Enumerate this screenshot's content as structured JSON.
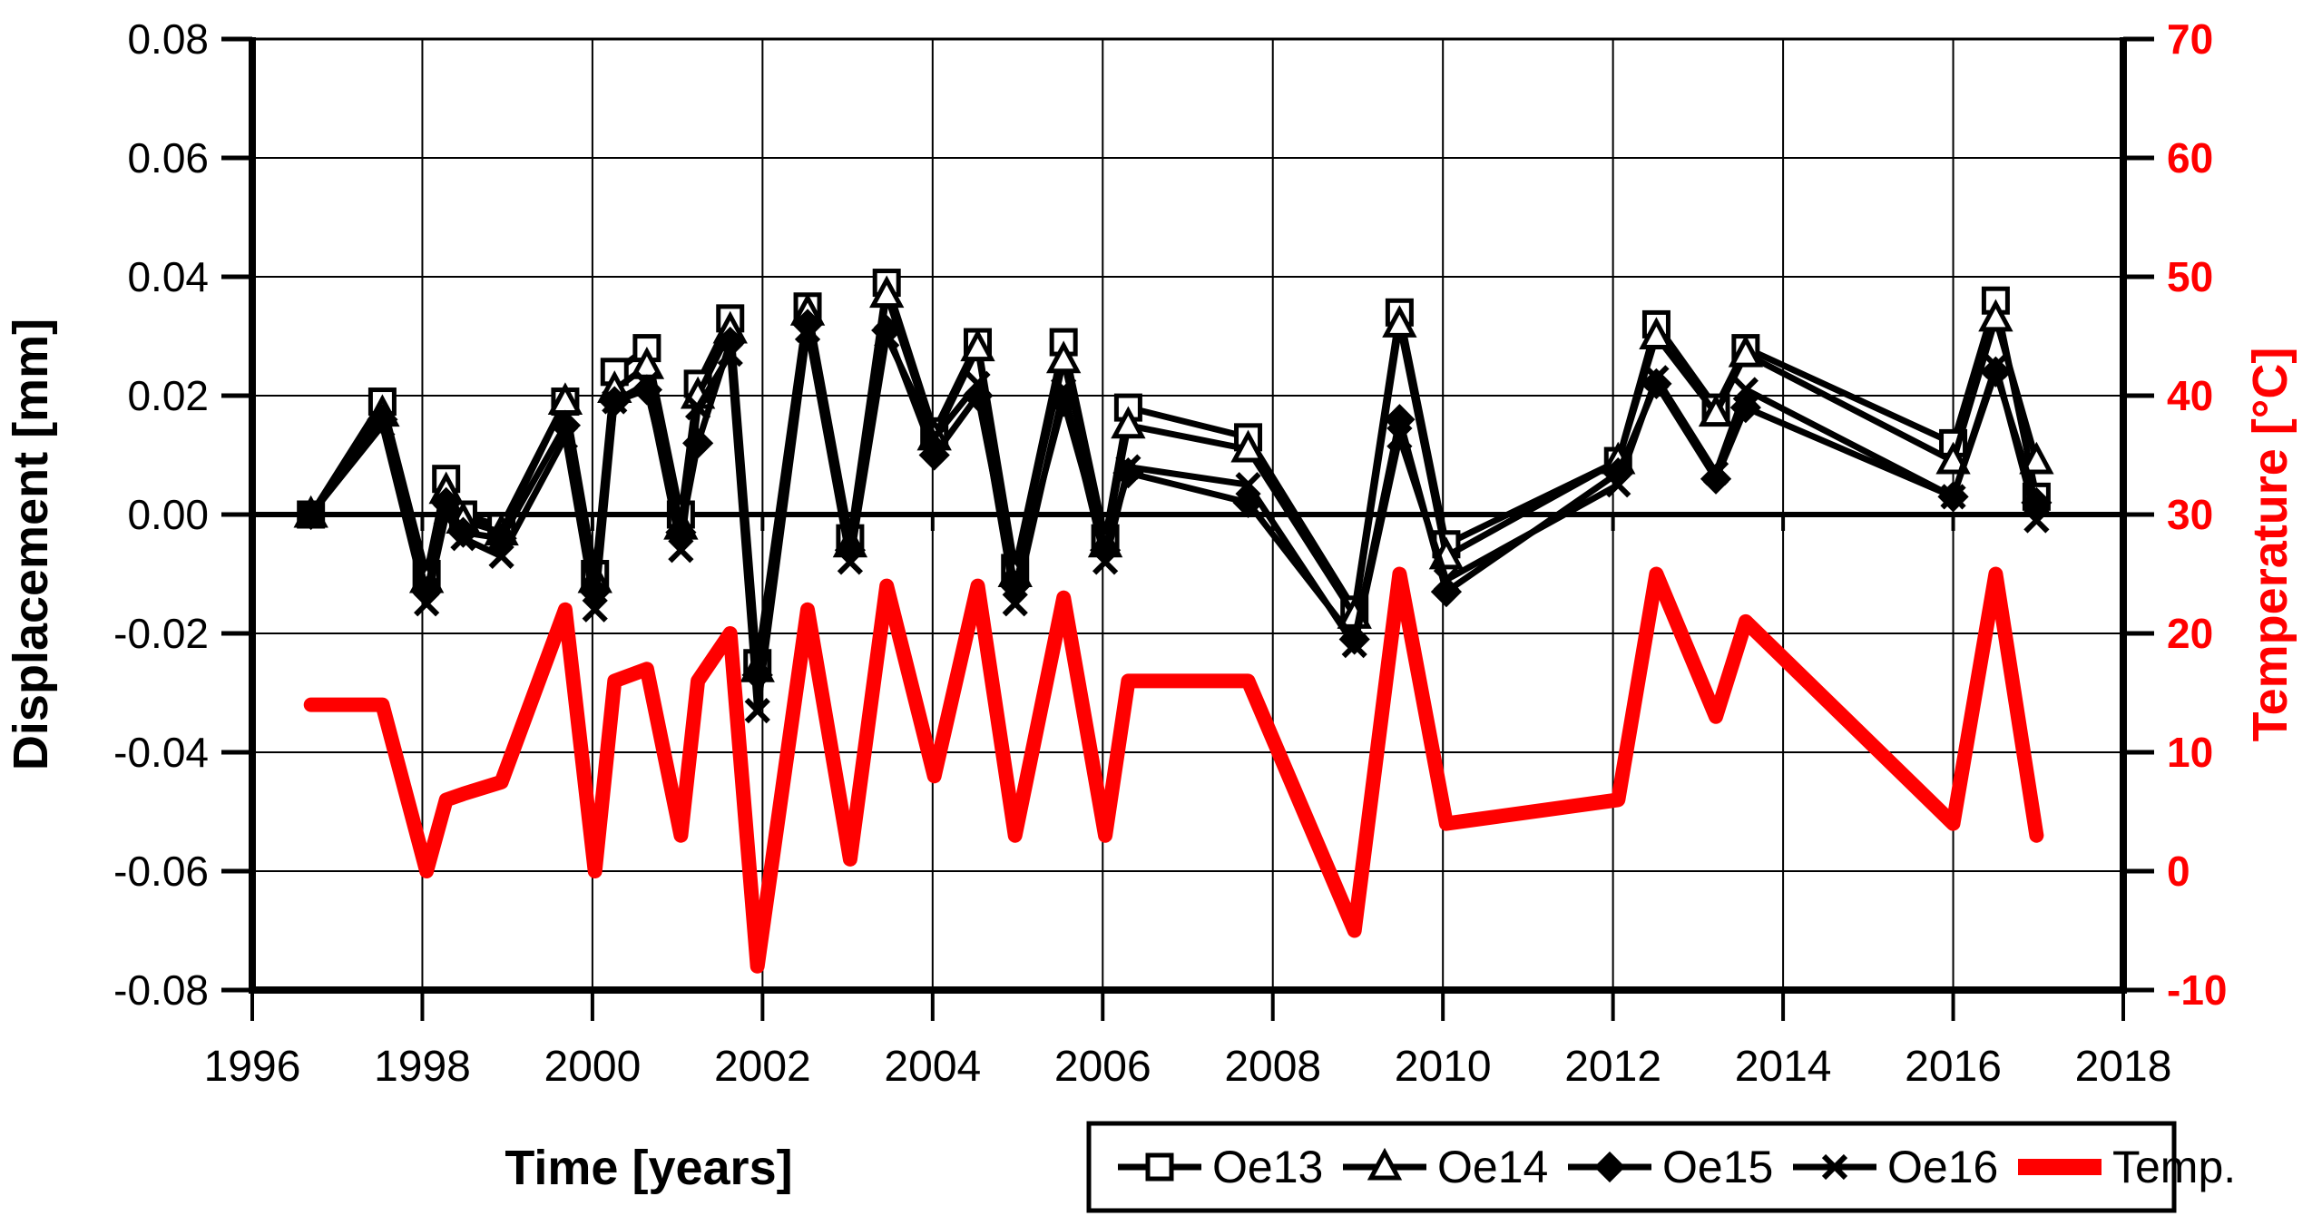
{
  "chart_data": {
    "type": "line",
    "title": "",
    "xlabel": "Time [years]",
    "ylabel_left": "Displacement [mm]",
    "ylabel_right": "Temperature [°C]",
    "x_axis": {
      "min": 1996,
      "max": 2018,
      "tick_step": 2,
      "ticks": [
        1996,
        1998,
        2000,
        2002,
        2004,
        2006,
        2008,
        2010,
        2012,
        2014,
        2016,
        2018
      ]
    },
    "y_axis_left": {
      "min": -0.08,
      "max": 0.08,
      "tick_step": 0.02,
      "color": "#000000",
      "ticks": [
        "0.08",
        "0.06",
        "0.04",
        "0.02",
        "0.00",
        "-0.02",
        "-0.04",
        "-0.06",
        "-0.08"
      ]
    },
    "y_axis_right": {
      "min": -10,
      "max": 70,
      "tick_step": 10,
      "color": "#ff0000",
      "ticks": [
        70,
        60,
        50,
        40,
        30,
        20,
        10,
        0,
        -10
      ]
    },
    "grid": true,
    "x": [
      1996.69,
      1997.53,
      1998.05,
      1998.28,
      1998.48,
      1998.93,
      1999.68,
      2000.03,
      2000.26,
      2000.64,
      2001.04,
      2001.24,
      2001.62,
      2001.94,
      2002.53,
      2003.03,
      2003.46,
      2004.02,
      2004.53,
      2004.97,
      2005.54,
      2006.03,
      2006.3,
      2007.71,
      2008.96,
      2009.49,
      2010.04,
      2012.06,
      2012.51,
      2013.21,
      2013.56,
      2016.0,
      2016.5,
      2016.98
    ],
    "series": [
      {
        "name": "Oe13",
        "axis": "left",
        "color": "#000000",
        "marker": "open-square",
        "line_width": 7,
        "values": [
          0.0,
          0.019,
          -0.01,
          0.006,
          0.0,
          -0.002,
          0.019,
          -0.01,
          0.024,
          0.028,
          0.0,
          0.022,
          0.033,
          -0.025,
          0.035,
          -0.004,
          0.039,
          0.014,
          0.029,
          -0.009,
          0.029,
          -0.004,
          0.018,
          0.013,
          -0.016,
          0.034,
          -0.005,
          0.009,
          0.032,
          0.018,
          0.028,
          0.012,
          0.036,
          0.003
        ]
      },
      {
        "name": "Oe14",
        "axis": "left",
        "color": "#000000",
        "marker": "open-triangle",
        "line_width": 7,
        "values": [
          0.0,
          0.017,
          -0.011,
          0.004,
          -0.001,
          -0.003,
          0.019,
          -0.011,
          0.021,
          0.025,
          -0.002,
          0.02,
          0.031,
          -0.026,
          0.034,
          -0.005,
          0.037,
          0.013,
          0.028,
          -0.01,
          0.026,
          -0.005,
          0.015,
          0.011,
          -0.017,
          0.032,
          -0.007,
          0.009,
          0.03,
          0.017,
          0.027,
          0.009,
          0.033,
          0.009
        ]
      },
      {
        "name": "Oe15",
        "axis": "left",
        "color": "#000000",
        "marker": "filled-diamond",
        "line_width": 7,
        "values": [
          0.0,
          0.016,
          -0.013,
          0.002,
          -0.003,
          -0.004,
          0.015,
          -0.013,
          0.019,
          0.021,
          -0.003,
          0.012,
          0.029,
          -0.027,
          0.032,
          -0.006,
          0.031,
          0.01,
          0.02,
          -0.012,
          0.019,
          -0.006,
          0.007,
          0.002,
          -0.021,
          0.016,
          -0.013,
          0.007,
          0.022,
          0.006,
          0.018,
          0.003,
          0.024,
          0.002
        ]
      },
      {
        "name": "Oe16",
        "axis": "left",
        "color": "#000000",
        "marker": "x-cross",
        "line_width": 7,
        "values": [
          0.0,
          0.015,
          -0.015,
          0.0,
          -0.004,
          -0.007,
          0.013,
          -0.016,
          0.019,
          0.022,
          -0.006,
          0.018,
          0.027,
          -0.033,
          0.031,
          -0.008,
          0.03,
          0.013,
          0.022,
          -0.015,
          0.021,
          -0.008,
          0.008,
          0.005,
          -0.022,
          0.013,
          -0.011,
          0.005,
          0.023,
          0.007,
          0.021,
          0.003,
          0.025,
          -0.001
        ]
      },
      {
        "name": "Temp.",
        "axis": "right",
        "color": "#ff0000",
        "marker": "none",
        "line_width": 16,
        "values": [
          14,
          14,
          0,
          6,
          6.5,
          7.5,
          22,
          0,
          16,
          17,
          3,
          16,
          20,
          -8,
          22,
          1,
          24,
          8,
          24,
          3,
          23,
          3,
          16,
          16,
          -5,
          25,
          4,
          6,
          25,
          13,
          21,
          4,
          25,
          3
        ]
      }
    ],
    "legend": {
      "position": "bottom-right",
      "entries": [
        "Oe13",
        "Oe14",
        "Oe15",
        "Oe16",
        "Temp."
      ]
    }
  }
}
